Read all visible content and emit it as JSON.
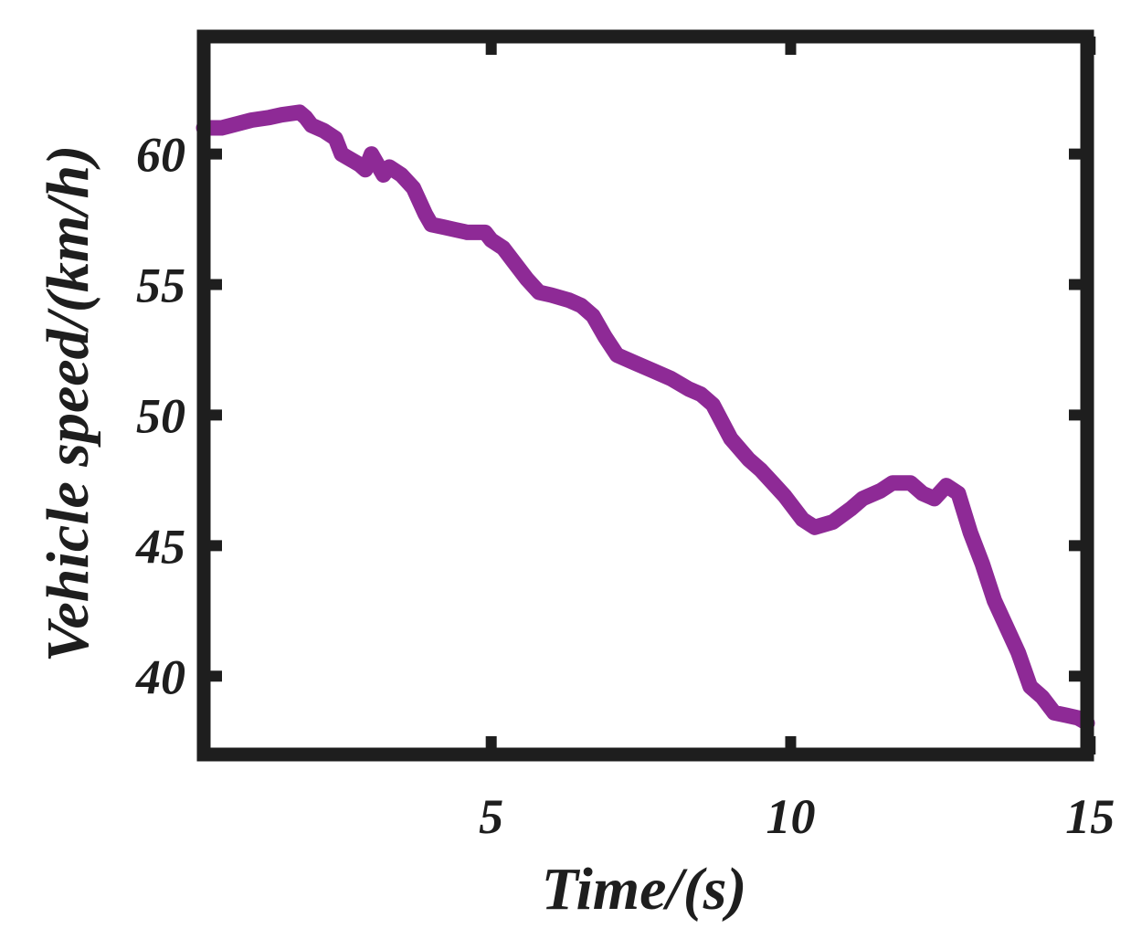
{
  "chart_data": {
    "type": "line",
    "title": "",
    "xlabel": "Time/(s)",
    "ylabel": "Vehicle speed/(km/h)",
    "xlim": [
      0.2,
      14.95
    ],
    "ylim": [
      37.0,
      64.5
    ],
    "xticks": [
      5,
      10,
      15
    ],
    "yticks": [
      40,
      45,
      50,
      55,
      60
    ],
    "grid": false,
    "colors": {
      "line": "#8e2a96",
      "axes": "#1e1e1e"
    },
    "series": [
      {
        "name": "",
        "x": [
          0.2,
          0.5,
          1.0,
          1.3,
          1.5,
          1.8,
          1.9,
          2.0,
          2.2,
          2.4,
          2.5,
          2.8,
          2.9,
          3.0,
          3.2,
          3.3,
          3.5,
          3.7,
          3.9,
          4.0,
          4.2,
          4.4,
          4.6,
          4.9,
          5.0,
          5.2,
          5.4,
          5.6,
          5.8,
          6.0,
          6.3,
          6.5,
          6.7,
          6.9,
          7.1,
          7.4,
          7.7,
          8.0,
          8.3,
          8.5,
          8.7,
          9.0,
          9.3,
          9.5,
          9.7,
          9.9,
          10.2,
          10.4,
          10.7,
          11.0,
          11.2,
          11.5,
          11.7,
          12.0,
          12.2,
          12.4,
          12.6,
          12.8,
          13.0,
          13.2,
          13.4,
          13.6,
          13.8,
          14.0,
          14.2,
          14.4,
          14.6,
          14.8,
          14.95
        ],
        "y": [
          61.0,
          61.0,
          61.3,
          61.4,
          61.5,
          61.6,
          61.4,
          61.1,
          60.9,
          60.6,
          60.0,
          59.6,
          59.4,
          60.0,
          59.2,
          59.5,
          59.2,
          58.7,
          57.7,
          57.3,
          57.2,
          57.1,
          57.0,
          57.0,
          56.7,
          56.4,
          55.8,
          55.2,
          54.7,
          54.6,
          54.4,
          54.2,
          53.8,
          53.0,
          52.3,
          52.0,
          51.7,
          51.4,
          51.0,
          50.8,
          50.4,
          49.1,
          48.3,
          47.9,
          47.4,
          46.9,
          46.0,
          45.7,
          45.9,
          46.4,
          46.8,
          47.1,
          47.4,
          47.4,
          47.0,
          46.8,
          47.3,
          47.0,
          45.5,
          44.3,
          42.9,
          41.9,
          40.9,
          39.6,
          39.2,
          38.6,
          38.5,
          38.4,
          38.2
        ]
      }
    ]
  }
}
